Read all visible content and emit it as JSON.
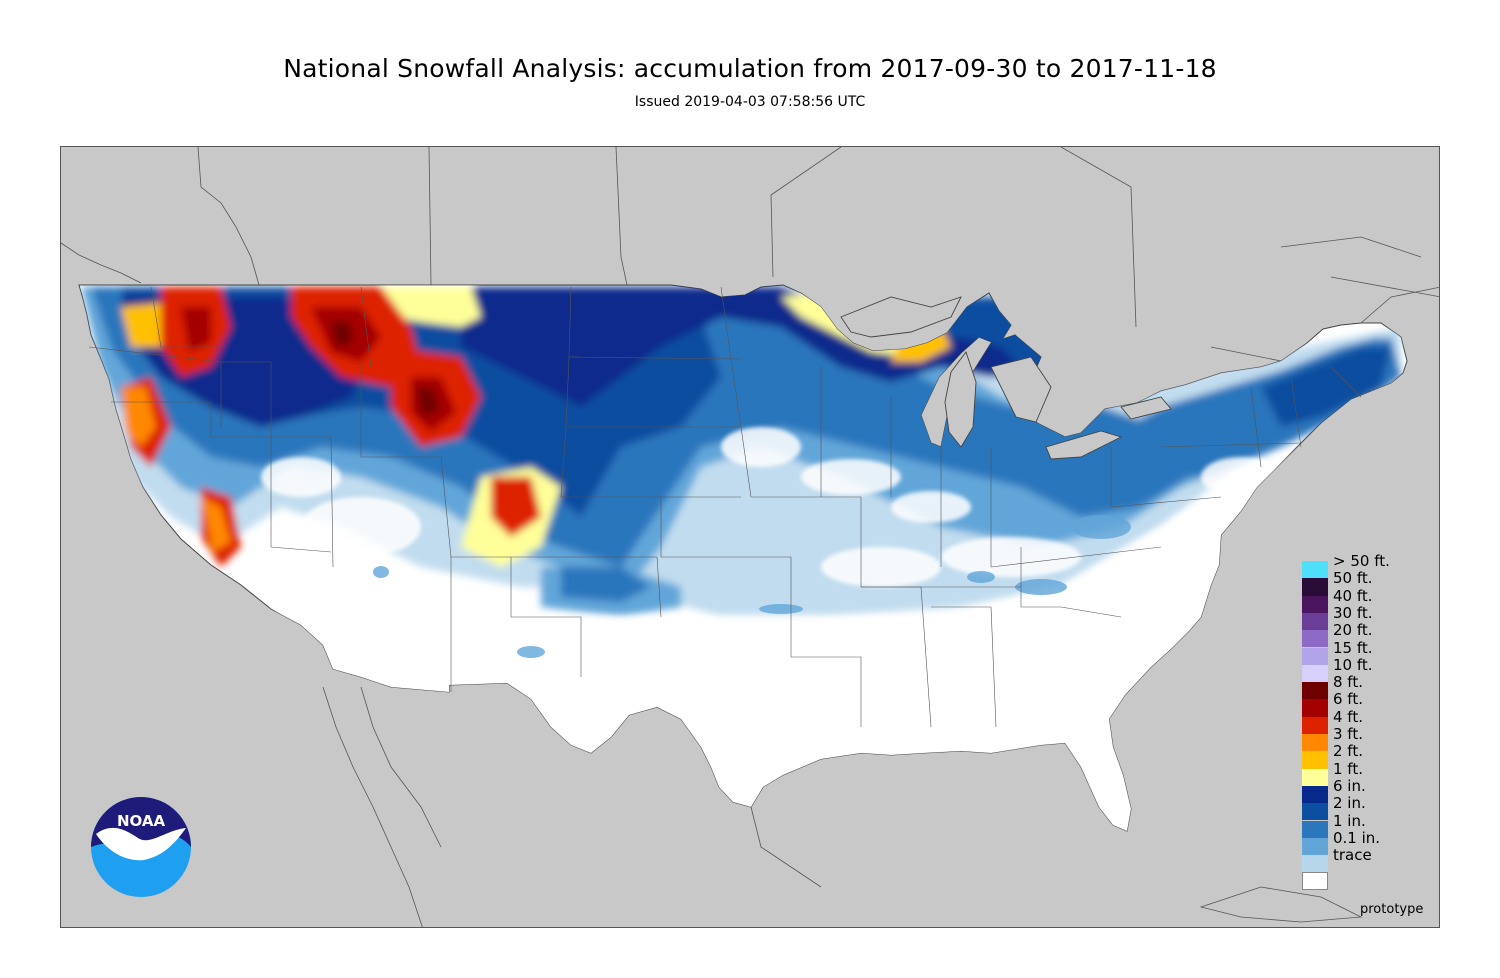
{
  "title": "National Snowfall Analysis: accumulation from 2017-09-30 to 2017-11-18",
  "subtitle": "Issued 2019-04-03 07:58:56 UTC",
  "watermark": "prototype",
  "logo": {
    "text": "NOAA",
    "colors": {
      "dark": "#1f1b7a",
      "light": "#1e9ff0"
    }
  },
  "map": {
    "region": "contiguous United States",
    "background_color": "#c8c8c8",
    "land_color": "#ffffff",
    "border_color": "#555555"
  },
  "legend": {
    "items": [
      {
        "label": "> 50 ft.",
        "color": "#4ee0fb"
      },
      {
        "label": "50 ft.",
        "color": "#2a0a36"
      },
      {
        "label": "40 ft.",
        "color": "#4a145e"
      },
      {
        "label": "30 ft.",
        "color": "#6a3d96"
      },
      {
        "label": "20 ft.",
        "color": "#8d6ac6"
      },
      {
        "label": "15 ft.",
        "color": "#b2a4e8"
      },
      {
        "label": "10 ft.",
        "color": "#d6d0fa"
      },
      {
        "label": "8 ft.",
        "color": "#6e0000"
      },
      {
        "label": "6 ft.",
        "color": "#a40000"
      },
      {
        "label": "4 ft.",
        "color": "#dd2200"
      },
      {
        "label": "3 ft.",
        "color": "#ff8800"
      },
      {
        "label": "2 ft.",
        "color": "#ffc000"
      },
      {
        "label": "1 ft.",
        "color": "#ffff99"
      },
      {
        "label": "6 in.",
        "color": "#08298c"
      },
      {
        "label": "2 in.",
        "color": "#0c4ea0"
      },
      {
        "label": "1 in.",
        "color": "#2c76bc"
      },
      {
        "label": "0.1 in.",
        "color": "#62a6d9"
      },
      {
        "label": "trace",
        "color": "#b6d6ec"
      },
      {
        "label": "",
        "color": "#ffffff"
      }
    ]
  }
}
